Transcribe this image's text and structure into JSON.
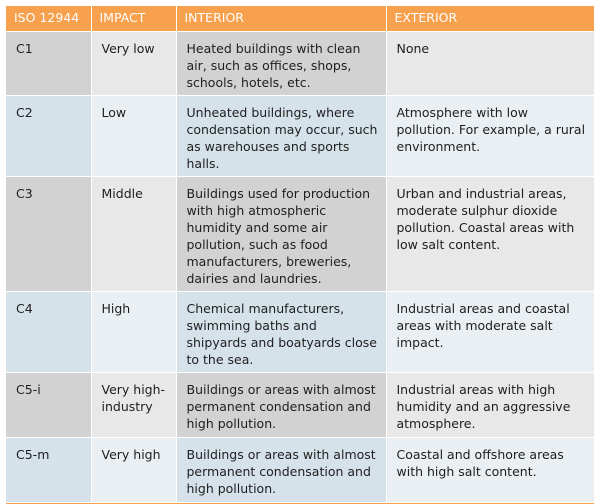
{
  "table": {
    "headers": [
      "ISO 12944",
      "IMPACT",
      "INTERIOR",
      "EXTERIOR"
    ],
    "rows": [
      {
        "iso": "C1",
        "impact": "Very low",
        "interior": "Heated buildings with clean air, such as offices, shops, schools, hotels, etc.",
        "exterior": "None"
      },
      {
        "iso": "C2",
        "impact": "Low",
        "interior": "Unheated buildings, where condensation may occur, such as warehouses and sports halls.",
        "exterior": "Atmosphere with low pollution. For example, a rural environment."
      },
      {
        "iso": "C3",
        "impact": "Middle",
        "interior": "Buildings used for production with high atmospheric humidity and some air pollution, such as food manufacturers, breweries, dairies and laundries.",
        "exterior": "Urban and industrial areas, moderate sulphur dioxide pollution. Coastal areas with low salt content."
      },
      {
        "iso": "C4",
        "impact": "High",
        "interior": "Chemical manufacturers, swimming baths and shipyards and boatyards close to the sea.",
        "exterior": "Industrial areas and coastal areas with moderate salt impact."
      },
      {
        "iso": "C5-i",
        "impact": "Very high-industry",
        "interior": "Buildings or areas with almost permanent condensation and high pollution.",
        "exterior": "Industrial areas with high humidity and an aggressive atmosphere."
      },
      {
        "iso": "C5-m",
        "impact": "Very high",
        "interior": "Buildings or areas with almost permanent condensation and high pollution.",
        "exterior": "Coastal and offshore areas with high salt content."
      }
    ]
  },
  "colors": {
    "header_bg": "#f7a04d",
    "grey_cell": "#d2d2d2",
    "light_cell": "#e8e8e8",
    "blue_cell": "#d6e2ea"
  }
}
